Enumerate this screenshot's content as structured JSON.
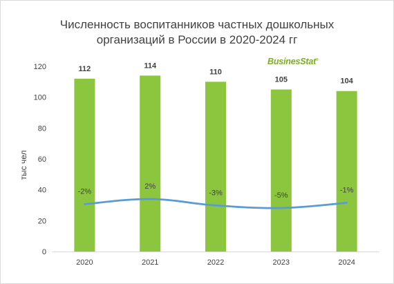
{
  "chart_data": {
    "type": "bar",
    "title_line1": "Численность воспитанников частных дошкольных",
    "title_line2": "организаций в России в 2020-2024 гг",
    "ylabel": "тыс чел",
    "categories": [
      "2020",
      "2021",
      "2022",
      "2023",
      "2024"
    ],
    "ylim": [
      0,
      120
    ],
    "yticks": [
      0,
      20,
      40,
      60,
      80,
      100,
      120
    ],
    "grid": false,
    "series": [
      {
        "type": "bar",
        "values": [
          112,
          114,
          110,
          105,
          104
        ],
        "labels": [
          "112",
          "114",
          "110",
          "105",
          "104"
        ],
        "color": "#8cc63f"
      },
      {
        "type": "line",
        "values": [
          -2,
          2,
          -3,
          -5,
          -1
        ],
        "labels": [
          "-2%",
          "2%",
          "-3%",
          "-5%",
          "-1%"
        ],
        "color": "#5b9bd5",
        "unit": "%"
      }
    ]
  },
  "brand": {
    "logo_text": "BusinesStat",
    "logo_mark": "®",
    "color": "#7aad1f"
  }
}
